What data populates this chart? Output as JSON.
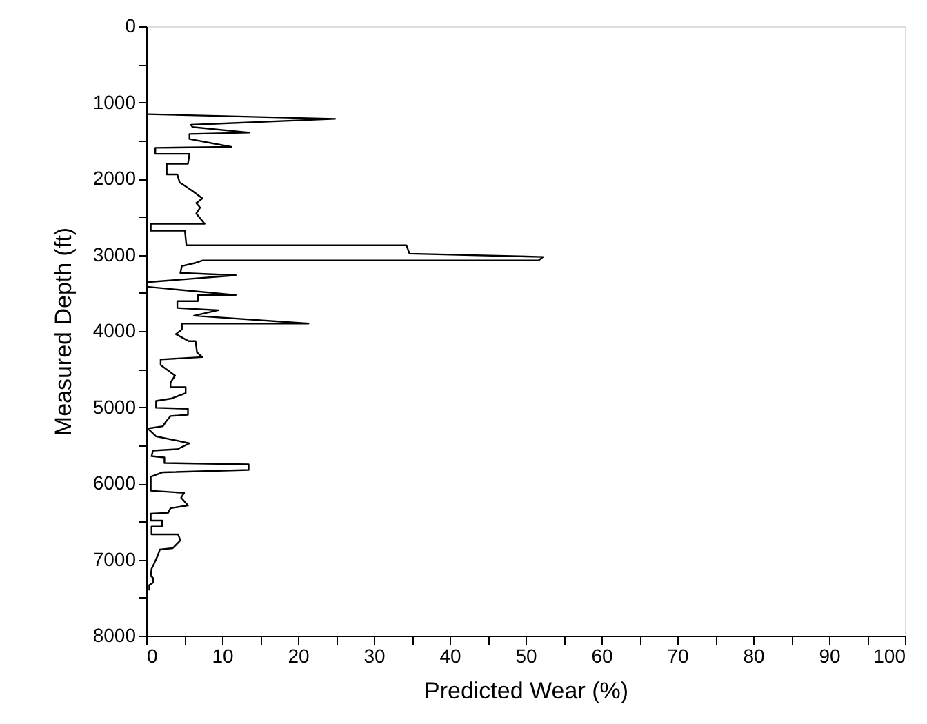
{
  "chart_data": {
    "type": "line",
    "xlabel": "Predicted Wear (%)",
    "ylabel": "Measured Depth (ft)",
    "xlim": [
      0,
      100
    ],
    "ylim": [
      8000,
      0
    ],
    "xticks": [
      0,
      {
        "value": 5,
        "label": null
      },
      10,
      {
        "value": 15,
        "label": null
      },
      20,
      {
        "value": 25,
        "label": null
      },
      30,
      {
        "value": 35,
        "label": null
      },
      40,
      {
        "value": 45,
        "label": null
      },
      50,
      {
        "value": 55,
        "label": null
      },
      60,
      {
        "value": 65,
        "label": null
      },
      70,
      {
        "value": 75,
        "label": null
      },
      80,
      {
        "value": 85,
        "label": null
      },
      90,
      {
        "value": 95,
        "label": null
      },
      100
    ],
    "yticks": [
      0,
      {
        "value": 500,
        "label": null
      },
      1000,
      {
        "value": 1500,
        "label": null
      },
      2000,
      {
        "value": 2500,
        "label": null
      },
      3000,
      {
        "value": 3500,
        "label": null
      },
      4000,
      {
        "value": 4500,
        "label": null
      },
      5000,
      {
        "value": 5500,
        "label": null
      },
      6000,
      {
        "value": 6500,
        "label": null
      },
      7000,
      {
        "value": 7500,
        "label": null
      },
      8000
    ],
    "grid": false,
    "series": [
      {
        "color": "#000000",
        "x": [
          0.2,
          24.9,
          5.9,
          6.1,
          13.6,
          5.7,
          5.7,
          11.2,
          1.2,
          1.2,
          5.7,
          5.5,
          2.7,
          2.7,
          4.1,
          4.4,
          5.3,
          6.2,
          7.4,
          6.6,
          7.1,
          6.6,
          7.7,
          0.6,
          0.6,
          5.1,
          5.3,
          34.3,
          34.7,
          52.3,
          51.7,
          7.4,
          6.5,
          4.7,
          4.5,
          11.8,
          0.1,
          0.1,
          11.8,
          6.8,
          6.8,
          4.1,
          4.1,
          9.5,
          6.3,
          21.4,
          4.7,
          4.7,
          3.9,
          5.6,
          6.5,
          6.7,
          7.4,
          1.9,
          1.9,
          3.8,
          3.2,
          3.2,
          5.2,
          5.2,
          3.3,
          1.3,
          1.3,
          5.5,
          5.5,
          3.2,
          2.6,
          2.2,
          0.2,
          1.3,
          5.7,
          4.1,
          0.9,
          0.7,
          2.4,
          2.4,
          13.5,
          13.5,
          2.2,
          0.6,
          0.6,
          5.0,
          4.6,
          5.5,
          3.2,
          2.9,
          0.6,
          0.6,
          2.1,
          2.1,
          0.7,
          0.7,
          4.2,
          4.5,
          3.5,
          1.8,
          1.5,
          1.0,
          0.7,
          0.6,
          0.9,
          0.9,
          0.4,
          0.4
        ],
        "values": [
          1155,
          1216,
          1294,
          1324,
          1397,
          1415,
          1481,
          1584,
          1596,
          1675,
          1675,
          1807,
          1807,
          1946,
          1946,
          2049,
          2109,
          2169,
          2260,
          2321,
          2381,
          2459,
          2593,
          2593,
          2684,
          2684,
          2876,
          2876,
          2985,
          3028,
          3075,
          3075,
          3106,
          3148,
          3238,
          3269,
          3360,
          3420,
          3528,
          3528,
          3608,
          3608,
          3698,
          3728,
          3800,
          3903,
          3903,
          3981,
          4042,
          4133,
          4133,
          4283,
          4343,
          4374,
          4447,
          4586,
          4677,
          4737,
          4737,
          4815,
          4887,
          4918,
          5008,
          5021,
          5099,
          5117,
          5190,
          5250,
          5280,
          5383,
          5474,
          5552,
          5570,
          5643,
          5661,
          5733,
          5751,
          5824,
          5855,
          5914,
          6096,
          6126,
          6187,
          6290,
          6326,
          6386,
          6398,
          6489,
          6489,
          6567,
          6567,
          6670,
          6670,
          6748,
          6851,
          6869,
          6953,
          7062,
          7123,
          7213,
          7243,
          7304,
          7334,
          7406
        ]
      }
    ]
  }
}
